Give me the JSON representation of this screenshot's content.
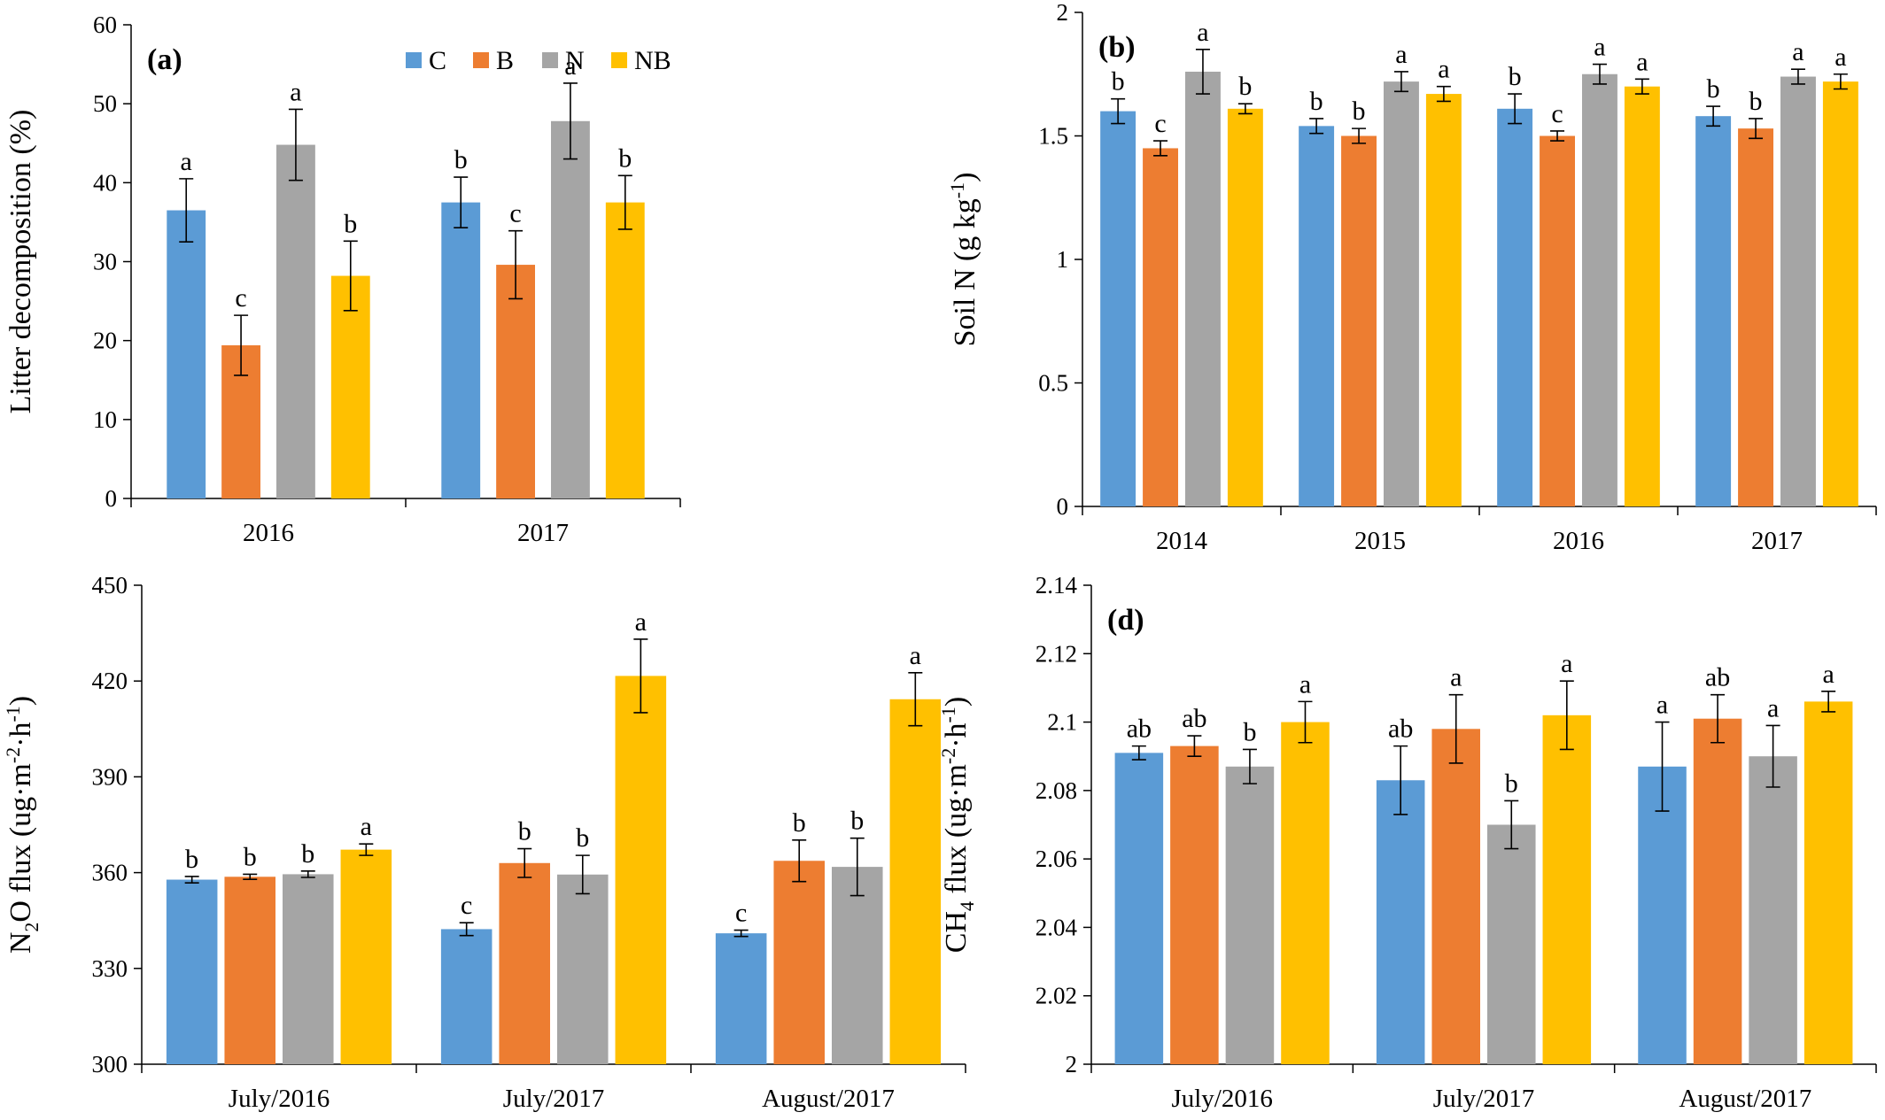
{
  "colors": {
    "C": "#5B9BD5",
    "B": "#ED7D31",
    "N": "#A5A5A5",
    "NB": "#FFC000"
  },
  "legend": [
    "C",
    "B",
    "N",
    "NB"
  ],
  "chart_data": [
    {
      "type": "bar",
      "tag": "(a)",
      "ylabel": "Litter decomposition (%)",
      "ylim": [
        0,
        60
      ],
      "yticks": [
        0,
        10,
        20,
        30,
        40,
        50,
        60
      ],
      "categories": [
        "2016",
        "2017"
      ],
      "series": [
        {
          "name": "C",
          "values": [
            36.5,
            37.5
          ],
          "errors": [
            4.0,
            3.2
          ],
          "letters": [
            "a",
            "b"
          ]
        },
        {
          "name": "B",
          "values": [
            19.4,
            29.6
          ],
          "errors": [
            3.8,
            4.3
          ],
          "letters": [
            "c",
            "c"
          ]
        },
        {
          "name": "N",
          "values": [
            44.8,
            47.8
          ],
          "errors": [
            4.5,
            4.8
          ],
          "letters": [
            "a",
            "a"
          ]
        },
        {
          "name": "NB",
          "values": [
            28.2,
            37.5
          ],
          "errors": [
            4.4,
            3.4
          ],
          "letters": [
            "b",
            "b"
          ]
        }
      ],
      "legend_position": "top-center"
    },
    {
      "type": "bar",
      "tag": "(b)",
      "ylabel_main": "Soil N (g kg",
      "ylabel_sup": "-1",
      "ylabel_end": ")",
      "ylim": [
        0,
        2
      ],
      "yticks": [
        "0",
        "0.5",
        "1",
        "1.5",
        "2"
      ],
      "categories": [
        "2014",
        "2015",
        "2016",
        "2017"
      ],
      "series": [
        {
          "name": "C",
          "values": [
            1.6,
            1.54,
            1.61,
            1.58
          ],
          "errors": [
            0.05,
            0.03,
            0.06,
            0.04
          ],
          "letters": [
            "b",
            "b",
            "b",
            "b"
          ]
        },
        {
          "name": "B",
          "values": [
            1.45,
            1.5,
            1.5,
            1.53
          ],
          "errors": [
            0.03,
            0.03,
            0.02,
            0.04
          ],
          "letters": [
            "c",
            "b",
            "c",
            "b"
          ]
        },
        {
          "name": "N",
          "values": [
            1.76,
            1.72,
            1.75,
            1.74
          ],
          "errors": [
            0.09,
            0.04,
            0.04,
            0.03
          ],
          "letters": [
            "a",
            "a",
            "a",
            "a"
          ]
        },
        {
          "name": "NB",
          "values": [
            1.61,
            1.67,
            1.7,
            1.72
          ],
          "errors": [
            0.02,
            0.03,
            0.03,
            0.03
          ],
          "letters": [
            "b",
            "a",
            "a",
            "a"
          ]
        }
      ]
    },
    {
      "type": "bar",
      "tag": "",
      "ylabel_parts": [
        "N",
        "2",
        "O  flux (ug·m",
        "-2",
        "·h",
        "-1",
        ")"
      ],
      "ylim": [
        300,
        450
      ],
      "yticks": [
        300,
        330,
        360,
        390,
        420,
        450
      ],
      "categories": [
        "July/2016",
        "July/2017",
        "August/2017"
      ],
      "series": [
        {
          "name": "C",
          "values": [
            357.8,
            342.3,
            341.0
          ],
          "errors": [
            1.0,
            2.0,
            1.0
          ],
          "letters": [
            "b",
            "c",
            "c"
          ]
        },
        {
          "name": "B",
          "values": [
            358.7,
            363.0,
            363.7
          ],
          "errors": [
            0.8,
            4.5,
            6.5
          ],
          "letters": [
            "b",
            "b",
            "b"
          ]
        },
        {
          "name": "N",
          "values": [
            359.5,
            359.4,
            361.8
          ],
          "errors": [
            1.0,
            6.0,
            9.0
          ],
          "letters": [
            "b",
            "b",
            "b"
          ]
        },
        {
          "name": "NB",
          "values": [
            367.2,
            421.6,
            414.3
          ],
          "errors": [
            1.8,
            11.5,
            8.3
          ],
          "letters": [
            "a",
            "a",
            "a"
          ]
        }
      ]
    },
    {
      "type": "bar",
      "tag": "(d)",
      "ylabel_parts": [
        "CH",
        "4",
        " flux (ug·m",
        "-2",
        "·h",
        "-1",
        ")"
      ],
      "ylim": [
        2.0,
        2.14
      ],
      "yticks": [
        "2",
        "2.02",
        "2.04",
        "2.06",
        "2.08",
        "2.1",
        "2.12",
        "2.14"
      ],
      "categories": [
        "July/2016",
        "July/2017",
        "August/2017"
      ],
      "series": [
        {
          "name": "C",
          "values": [
            2.091,
            2.083,
            2.087
          ],
          "errors": [
            0.002,
            0.01,
            0.013
          ],
          "letters": [
            "ab",
            "ab",
            "a"
          ]
        },
        {
          "name": "B",
          "values": [
            2.093,
            2.098,
            2.101
          ],
          "errors": [
            0.003,
            0.01,
            0.007
          ],
          "letters": [
            "ab",
            "a",
            "ab"
          ]
        },
        {
          "name": "N",
          "values": [
            2.087,
            2.07,
            2.09
          ],
          "errors": [
            0.005,
            0.007,
            0.009
          ],
          "letters": [
            "b",
            "b",
            "a"
          ]
        },
        {
          "name": "NB",
          "values": [
            2.1,
            2.102,
            2.106
          ],
          "errors": [
            0.006,
            0.01,
            0.003
          ],
          "letters": [
            "a",
            "a",
            "a"
          ]
        }
      ]
    }
  ]
}
